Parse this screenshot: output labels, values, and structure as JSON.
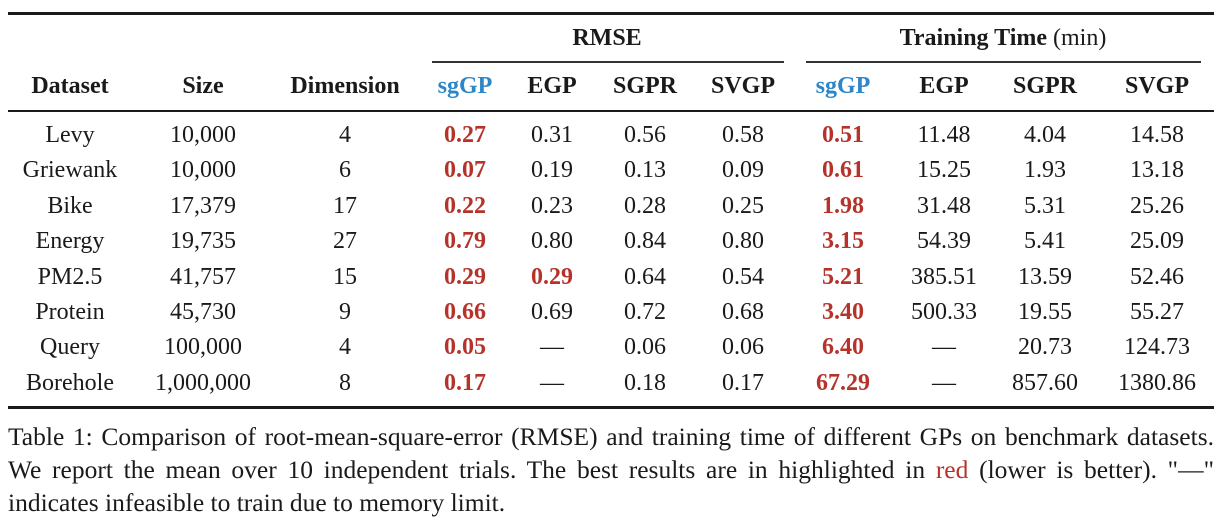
{
  "table": {
    "group_headers": {
      "rmse": {
        "label": "RMSE"
      },
      "time": {
        "label": "Training Time",
        "unit": "(min)"
      }
    },
    "columns": [
      "Dataset",
      "Size",
      "Dimension",
      "sgGP",
      "EGP",
      "SGPR",
      "SVGP",
      "sgGP",
      "EGP",
      "SGPR",
      "SVGP"
    ],
    "rows": [
      {
        "dataset": "Levy",
        "size": "10,000",
        "dim": "4",
        "rmse": [
          "0.27",
          "0.31",
          "0.56",
          "0.58"
        ],
        "time": [
          "0.51",
          "11.48",
          "4.04",
          "14.58"
        ],
        "best_rmse": [
          0
        ],
        "best_time": [
          0
        ]
      },
      {
        "dataset": "Griewank",
        "size": "10,000",
        "dim": "6",
        "rmse": [
          "0.07",
          "0.19",
          "0.13",
          "0.09"
        ],
        "time": [
          "0.61",
          "15.25",
          "1.93",
          "13.18"
        ],
        "best_rmse": [
          0
        ],
        "best_time": [
          0
        ]
      },
      {
        "dataset": "Bike",
        "size": "17,379",
        "dim": "17",
        "rmse": [
          "0.22",
          "0.23",
          "0.28",
          "0.25"
        ],
        "time": [
          "1.98",
          "31.48",
          "5.31",
          "25.26"
        ],
        "best_rmse": [
          0
        ],
        "best_time": [
          0
        ]
      },
      {
        "dataset": "Energy",
        "size": "19,735",
        "dim": "27",
        "rmse": [
          "0.79",
          "0.80",
          "0.84",
          "0.80"
        ],
        "time": [
          "3.15",
          "54.39",
          "5.41",
          "25.09"
        ],
        "best_rmse": [
          0
        ],
        "best_time": [
          0
        ]
      },
      {
        "dataset": "PM2.5",
        "size": "41,757",
        "dim": "15",
        "rmse": [
          "0.29",
          "0.29",
          "0.64",
          "0.54"
        ],
        "time": [
          "5.21",
          "385.51",
          "13.59",
          "52.46"
        ],
        "best_rmse": [
          0,
          1
        ],
        "best_time": [
          0
        ]
      },
      {
        "dataset": "Protein",
        "size": "45,730",
        "dim": "9",
        "rmse": [
          "0.66",
          "0.69",
          "0.72",
          "0.68"
        ],
        "time": [
          "3.40",
          "500.33",
          "19.55",
          "55.27"
        ],
        "best_rmse": [
          0
        ],
        "best_time": [
          0
        ]
      },
      {
        "dataset": "Query",
        "size": "100,000",
        "dim": "4",
        "rmse": [
          "0.05",
          "—",
          "0.06",
          "0.06"
        ],
        "time": [
          "6.40",
          "—",
          "20.73",
          "124.73"
        ],
        "best_rmse": [
          0
        ],
        "best_time": [
          0
        ]
      },
      {
        "dataset": "Borehole",
        "size": "1,000,000",
        "dim": "8",
        "rmse": [
          "0.17",
          "—",
          "0.18",
          "0.17"
        ],
        "time": [
          "67.29",
          "—",
          "857.60",
          "1380.86"
        ],
        "best_rmse": [
          0
        ],
        "best_time": [
          0
        ]
      }
    ]
  },
  "caption": {
    "part1": "Table 1: Comparison of root-mean-square-error (RMSE) and training time of different GPs on benchmark datasets. We report the mean over 10 independent trials. The best results are in highlighted in ",
    "red_word": "red",
    "part2": " (lower is better). \"—\" indicates infeasible to train due to memory limit."
  },
  "colors": {
    "best": "#b5332a",
    "method_accent": "#2e86c8"
  }
}
